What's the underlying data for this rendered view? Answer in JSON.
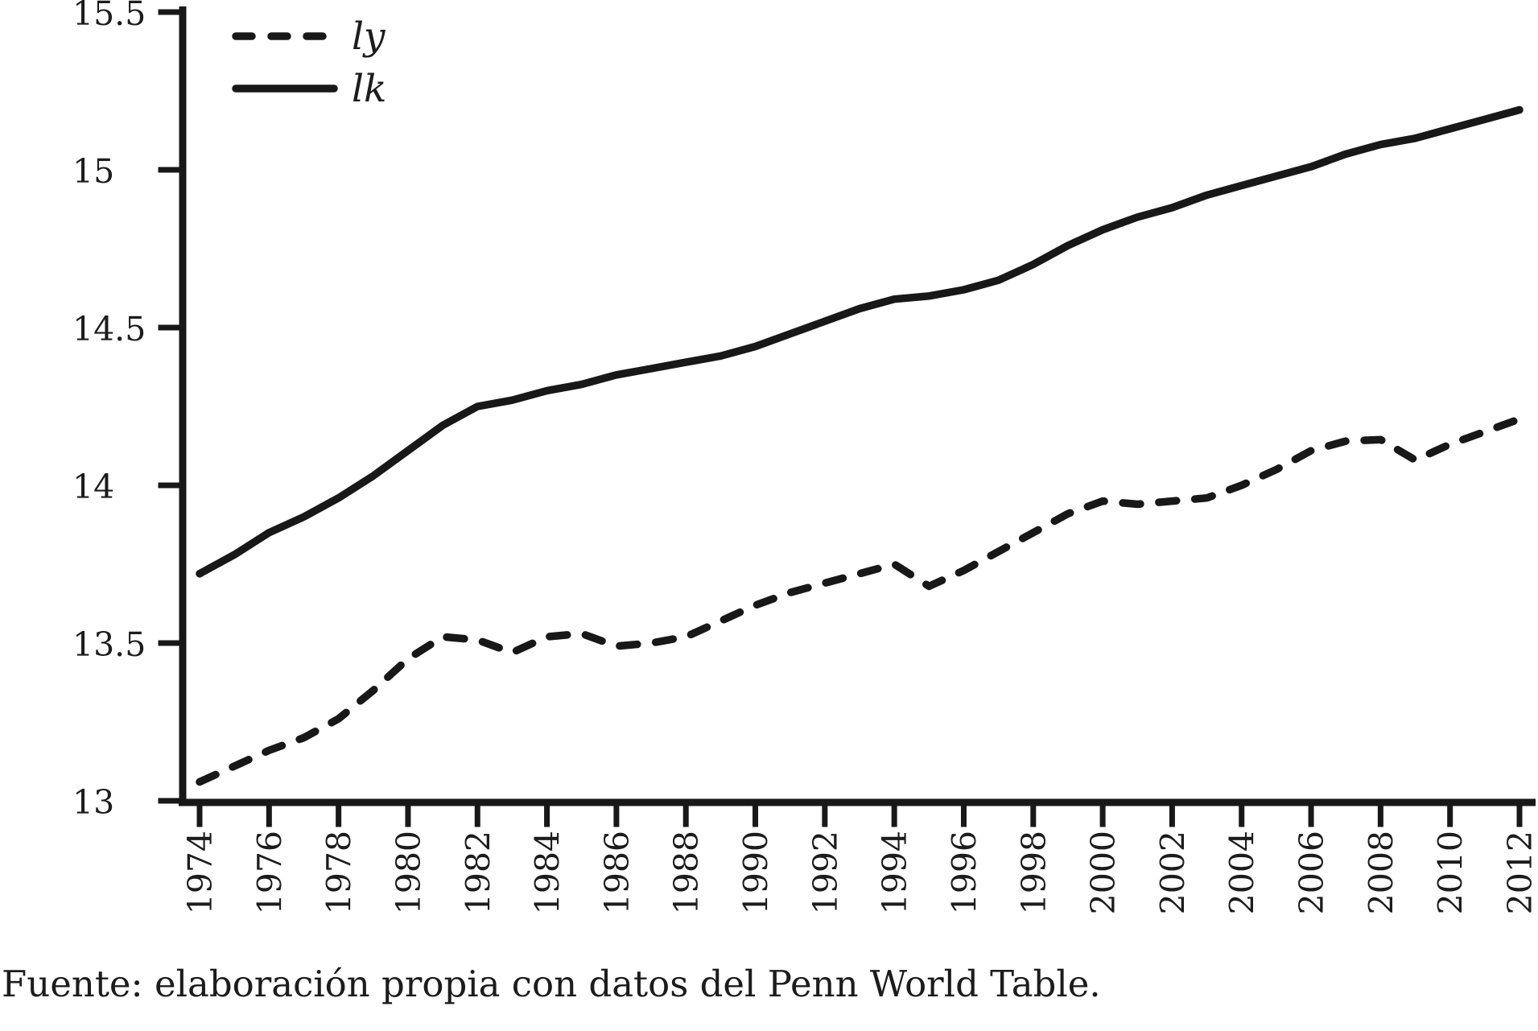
{
  "caption": "Fuente: elaboración propia con datos del Penn World Table.",
  "colors": {
    "line": "#181818",
    "text": "#1c1c1c",
    "background": "#ffffff"
  },
  "legend": {
    "position": "top-left",
    "items": [
      {
        "label": "ly",
        "style": "dashed"
      },
      {
        "label": "lk",
        "style": "solid"
      }
    ]
  },
  "chart_data": {
    "type": "line",
    "title": "",
    "xlabel": "",
    "ylabel": "",
    "grid": false,
    "legend_position": "top-left",
    "xlim": [
      1973.4,
      2012.5
    ],
    "ylim": [
      13,
      15.5
    ],
    "yticks": [
      13,
      13.5,
      14,
      14.5,
      15,
      15.5
    ],
    "ytick_labels": [
      "13",
      "13.5",
      "14",
      "14.5",
      "15",
      "15.5"
    ],
    "xticks": [
      1974,
      1976,
      1978,
      1980,
      1982,
      1984,
      1986,
      1988,
      1990,
      1992,
      1994,
      1996,
      1998,
      2000,
      2002,
      2004,
      2006,
      2008,
      2010,
      2012
    ],
    "x": [
      1974,
      1975,
      1976,
      1977,
      1978,
      1979,
      1980,
      1981,
      1982,
      1983,
      1984,
      1985,
      1986,
      1987,
      1988,
      1989,
      1990,
      1991,
      1992,
      1993,
      1994,
      1995,
      1996,
      1997,
      1998,
      1999,
      2000,
      2001,
      2002,
      2003,
      2004,
      2005,
      2006,
      2007,
      2008,
      2009,
      2010,
      2011,
      2012
    ],
    "series": [
      {
        "name": "ly",
        "style": "dashed",
        "values": [
          13.06,
          13.11,
          13.16,
          13.2,
          13.26,
          13.35,
          13.45,
          13.52,
          13.51,
          13.47,
          13.52,
          13.53,
          13.49,
          13.5,
          13.52,
          13.57,
          13.62,
          13.66,
          13.69,
          13.72,
          13.75,
          13.68,
          13.73,
          13.79,
          13.85,
          13.91,
          13.95,
          13.94,
          13.95,
          13.96,
          14.0,
          14.05,
          14.11,
          14.14,
          14.145,
          14.08,
          14.13,
          14.17,
          14.21
        ]
      },
      {
        "name": "lk",
        "style": "solid",
        "values": [
          13.72,
          13.78,
          13.85,
          13.9,
          13.96,
          14.03,
          14.11,
          14.19,
          14.25,
          14.27,
          14.3,
          14.32,
          14.35,
          14.37,
          14.39,
          14.41,
          14.44,
          14.48,
          14.52,
          14.56,
          14.59,
          14.6,
          14.62,
          14.65,
          14.7,
          14.76,
          14.81,
          14.85,
          14.88,
          14.92,
          14.95,
          14.98,
          15.01,
          15.05,
          15.08,
          15.1,
          15.13,
          15.16,
          15.19
        ]
      }
    ]
  }
}
